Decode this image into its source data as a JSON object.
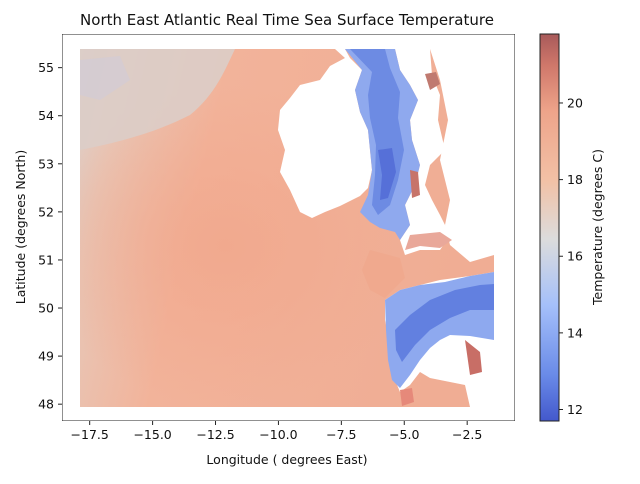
{
  "chart_data": {
    "type": "heatmap",
    "title": "North East Atlantic Real Time Sea Surface Temperature",
    "xlabel": "Longitude ( degrees East)",
    "ylabel": "Latitude (degrees North)",
    "xlim": [
      -18.6,
      -0.6
    ],
    "ylim": [
      47.65,
      55.7
    ],
    "xticks": [
      -17.5,
      -15.0,
      -12.5,
      -10.0,
      -7.5,
      -5.0,
      -2.5
    ],
    "xtick_labels": [
      "−17.5",
      "−15.0",
      "−12.5",
      "−10.0",
      "−7.5",
      "−5.0",
      "−2.5"
    ],
    "yticks": [
      48,
      49,
      50,
      51,
      52,
      53,
      54,
      55
    ],
    "ytick_labels": [
      "48",
      "49",
      "50",
      "51",
      "52",
      "53",
      "54",
      "55"
    ],
    "grid": false,
    "colormap": "coolwarm",
    "colorbar": {
      "label": "Temperature (degrees C)",
      "range": [
        11.7,
        21.8
      ],
      "ticks": [
        12,
        14,
        16,
        18,
        20
      ],
      "tick_labels": [
        "12",
        "14",
        "16",
        "18",
        "20"
      ]
    },
    "data_extent": {
      "lon": [
        -18.0,
        -1.0
      ],
      "lat": [
        48.0,
        55.5
      ]
    },
    "regions": [
      {
        "name": "open-ocean-west",
        "temperature": 17.4
      },
      {
        "name": "celtic-sea-shelf",
        "temperature": 18.4
      },
      {
        "name": "irish-sea",
        "temperature": 13.6
      },
      {
        "name": "english-channel-west",
        "temperature": 13.8
      },
      {
        "name": "coastal-warm-pockets",
        "temperature": 20.8
      }
    ]
  }
}
